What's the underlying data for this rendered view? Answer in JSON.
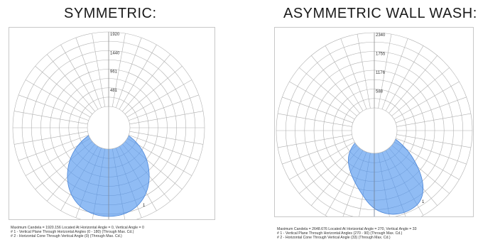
{
  "headings": {
    "left": "SYMMETRIC:",
    "right": "ASYMMETRIC WALL WASH:"
  },
  "colors": {
    "grid": "#b0b0b0",
    "distribution_fill": "#8ab8f3",
    "distribution_stroke": "#4c86d8",
    "outline": "#222222"
  },
  "left_diagram": {
    "ring_labels": [
      "481",
      "961",
      "1440",
      "1920"
    ],
    "curve_label": "1",
    "legend": [
      "Maximum Candela = 1920.156 Located At Horizontal Angle = 0, Vertical Angle = 0",
      "# 1 - Vertical Plane Through Horizontal Angles (0 - 180) (Through Max. Cd.)",
      "# 2 - Horizontal Cone Through Vertical Angle (0) (Through Max. Cd.)"
    ]
  },
  "right_diagram": {
    "ring_labels": [
      "588",
      "1176",
      "1755",
      "2340"
    ],
    "curve_label": "1",
    "legend": [
      "Maximum Candela = 2648.676 Located At Horizontal Angle = 270, Vertical Angle = 33",
      "# 1 - Vertical Plane Through Horizontal Angles (270 - 90) (Through Max. Cd.)",
      "# 2 - Horizontal Cone Through Vertical Angle (33) (Through Max. Cd.)"
    ]
  }
}
